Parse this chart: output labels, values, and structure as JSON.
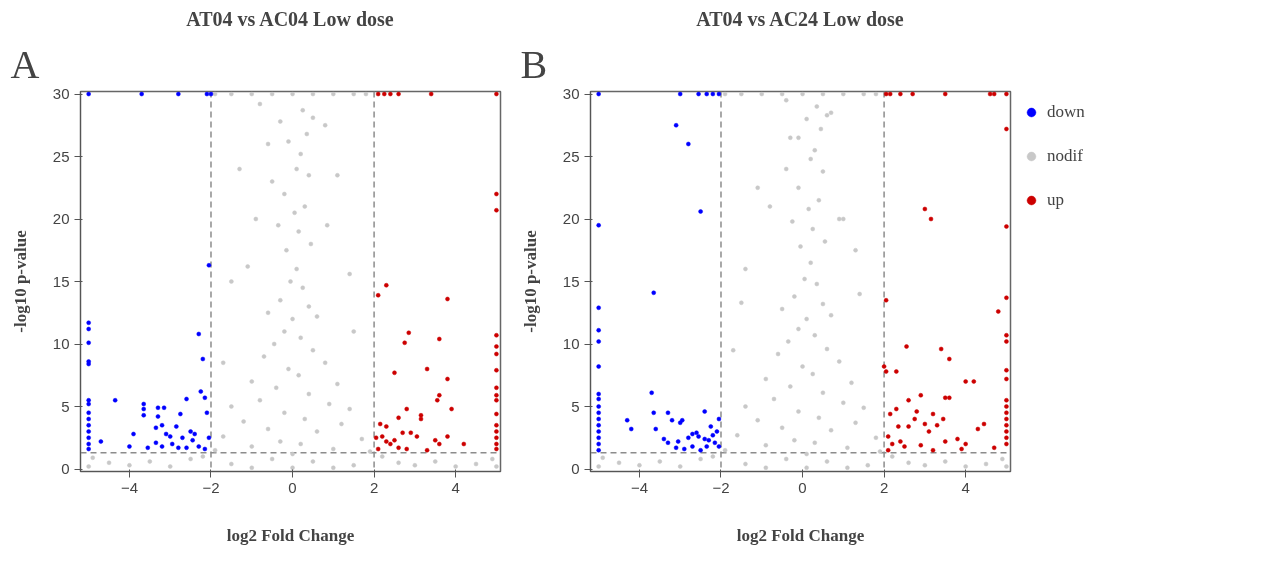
{
  "chart_data": [
    {
      "type": "scatter",
      "title": "AT04 vs AC04 Low dose",
      "xlabel": "log2 Fold Change",
      "ylabel": "-log10 p-value",
      "annotations": [
        "A"
      ],
      "xlim": [
        -5.2,
        5.1
      ],
      "ylim": [
        -0.2,
        30.2
      ],
      "xticks": [
        -4,
        -2,
        0,
        2,
        4
      ],
      "yticks": [
        0,
        5,
        10,
        15,
        20,
        25,
        30
      ],
      "grid": false,
      "legend": false,
      "marker": "circle",
      "ref_lines": [
        {
          "axis": "x",
          "value": -2,
          "color": "#8c8c8c",
          "line_style": "dashed"
        },
        {
          "axis": "x",
          "value": 2,
          "color": "#8c8c8c",
          "line_style": "dashed"
        },
        {
          "axis": "y",
          "value": 1.3,
          "color": "#8c8c8c",
          "line_style": "dashed"
        }
      ],
      "series": [
        {
          "color": "#c8c8c8",
          "x": [
            -1.9,
            -1.5,
            -1.0,
            -0.5,
            0,
            0.5,
            1.0,
            1.5,
            1.8,
            -0.8,
            0.25,
            -0.3,
            0.5,
            0.35,
            -0.1,
            0.2,
            -0.5,
            0.1,
            0.4,
            -0.2,
            0.3,
            0.05,
            -0.35,
            0.15,
            0.45,
            -0.15,
            -1.3,
            1.1,
            -1.1,
            1.4,
            0.1,
            -0.05,
            0.25,
            -0.3,
            0.4,
            -0.6,
            0.6,
            0,
            -0.2,
            0.2,
            -0.45,
            0.5,
            -0.7,
            0.8,
            -0.1,
            0.15,
            -1.0,
            1.1,
            -0.4,
            0.4,
            -0.8,
            0.9,
            -1.5,
            1.4,
            -0.2,
            0.3,
            -1.2,
            1.2,
            -0.6,
            0.6,
            -1.7,
            1.7,
            -0.3,
            0.2,
            -1.0,
            1.0,
            -1.9,
            1.9,
            0,
            -0.5,
            0.5,
            -1.5,
            1.5,
            0,
            -1.0,
            1.0,
            -1.7,
            -1.5,
            1.5,
            -0.9,
            0.85,
            -0.6,
            0.8,
            -4.9,
            -4.5,
            -4.0,
            -3.5,
            -3.0,
            -2.5,
            -2.2,
            2.2,
            2.6,
            3.0,
            3.5,
            4.0,
            4.5,
            4.9,
            -5,
            5
          ],
          "values": [
            30,
            30,
            30,
            30,
            30,
            30,
            30,
            30,
            30,
            29.2,
            28.7,
            27.8,
            28.1,
            26.8,
            26.2,
            25.2,
            23.0,
            24.0,
            23.5,
            22.0,
            21.0,
            20.5,
            19.5,
            19.0,
            18.0,
            17.5,
            24.0,
            23.5,
            16.2,
            15.6,
            16.0,
            15.0,
            14.5,
            13.5,
            13.0,
            12.5,
            12.2,
            12.0,
            11.0,
            10.5,
            10.0,
            9.5,
            9.0,
            8.5,
            8.0,
            7.5,
            7.0,
            6.8,
            6.5,
            6.0,
            5.5,
            5.2,
            5.0,
            4.8,
            4.5,
            4.0,
            3.8,
            3.6,
            3.2,
            3.0,
            2.6,
            2.4,
            2.2,
            2.0,
            1.8,
            1.6,
            1.5,
            1.4,
            1.2,
            0.8,
            0.6,
            0.4,
            0.3,
            0.1,
            0.1,
            0.1,
            8.5,
            15.0,
            11.0,
            20.0,
            19.5,
            26.0,
            27.5,
            0.9,
            0.5,
            0.3,
            0.6,
            0.2,
            0.8,
            1.0,
            1.0,
            0.5,
            0.3,
            0.6,
            0.2,
            0.4,
            0.8,
            0.2,
            0.2
          ]
        },
        {
          "color": "#0000ff",
          "x": [
            -5,
            -3.7,
            -2.8,
            -2.1,
            -2.0,
            -2.05,
            -5,
            -5,
            -5,
            -5,
            -5,
            -5,
            -5,
            -5,
            -5,
            -5,
            -5,
            -5,
            -5,
            -5,
            -4.35,
            -4.7,
            -3.9,
            -3.65,
            -3.65,
            -3.65,
            -3.3,
            -3.15,
            -3.3,
            -3.35,
            -3.2,
            -3.1,
            -3.0,
            -2.95,
            -2.85,
            -2.75,
            -2.6,
            -2.5,
            -2.4,
            -2.3,
            -2.2,
            -2.25,
            -2.15,
            -2.1,
            -2.05,
            -3.55,
            -3.2,
            -2.8,
            -2.6,
            -2.3,
            -2.15,
            -4.0,
            -3.35,
            -2.7,
            -2.45
          ],
          "values": [
            30,
            30,
            30,
            30,
            30,
            16.3,
            11.7,
            11.2,
            10.1,
            8.6,
            8.4,
            5.5,
            5.2,
            4.5,
            4.0,
            3.5,
            3.0,
            2.5,
            2.0,
            1.6,
            5.5,
            2.2,
            2.8,
            5.2,
            4.8,
            4.3,
            4.9,
            4.9,
            4.2,
            3.3,
            3.5,
            2.8,
            2.6,
            2.0,
            3.4,
            4.4,
            5.6,
            3.0,
            2.8,
            10.8,
            8.8,
            6.2,
            5.7,
            4.5,
            2.5,
            1.7,
            1.8,
            1.7,
            1.7,
            1.8,
            1.6,
            1.8,
            2.1,
            2.5,
            2.3
          ]
        },
        {
          "color": "#cc0000",
          "x": [
            2.1,
            2.25,
            2.4,
            2.6,
            3.4,
            5,
            5,
            5,
            2.1,
            2.3,
            3.8,
            2.85,
            2.75,
            3.6,
            5,
            5,
            5,
            5,
            5,
            5,
            5,
            5,
            5,
            5,
            5,
            5,
            5,
            2.5,
            3.3,
            3.8,
            3.55,
            3.6,
            3.9,
            2.8,
            2.6,
            3.15,
            3.15,
            2.15,
            2.3,
            2.2,
            2.05,
            2.3,
            2.5,
            2.7,
            2.9,
            3.05,
            3.5,
            3.8,
            4.2,
            2.1,
            2.6,
            2.8,
            3.3,
            3.6,
            2.4
          ],
          "values": [
            30,
            30,
            30,
            30,
            30,
            30,
            22,
            20.7,
            13.9,
            14.7,
            13.6,
            10.9,
            10.1,
            10.4,
            10.7,
            9.8,
            9.2,
            7.9,
            6.5,
            5.9,
            5.5,
            4.4,
            3.5,
            3.0,
            2.5,
            2.0,
            1.6,
            7.7,
            8.0,
            7.2,
            5.5,
            5.9,
            4.8,
            4.8,
            4.1,
            4.0,
            4.3,
            3.6,
            3.4,
            2.6,
            2.5,
            2.2,
            2.3,
            2.9,
            2.9,
            2.6,
            2.3,
            2.6,
            2.0,
            1.6,
            1.7,
            1.6,
            1.5,
            2.0,
            2.0
          ]
        }
      ]
    },
    {
      "type": "scatter",
      "title": "AT04 vs AC24 Low dose",
      "xlabel": "log2 Fold Change",
      "ylabel": "-log10 p-value",
      "annotations": [
        "B"
      ],
      "xlim": [
        -5.2,
        5.1
      ],
      "ylim": [
        -0.2,
        30.2
      ],
      "xticks": [
        -4,
        -2,
        0,
        2,
        4
      ],
      "yticks": [
        0,
        5,
        10,
        15,
        20,
        25,
        30
      ],
      "grid": false,
      "legend": "right",
      "marker": "circle",
      "ref_lines": [
        {
          "axis": "x",
          "value": -2,
          "color": "#8c8c8c",
          "line_style": "dashed"
        },
        {
          "axis": "x",
          "value": 2,
          "color": "#8c8c8c",
          "line_style": "dashed"
        },
        {
          "axis": "y",
          "value": 1.3,
          "color": "#8c8c8c",
          "line_style": "dashed"
        }
      ],
      "series": [
        {
          "name": "down",
          "color": "#0000ff",
          "x": [
            -5,
            -3.0,
            -2.55,
            -2.35,
            -2.2,
            -2.05,
            -3.1,
            -2.8,
            -2.5,
            -5,
            -3.65,
            -5,
            -5,
            -5,
            -5,
            -5,
            -5,
            -5,
            -5,
            -5,
            -5,
            -5,
            -5,
            -5,
            -5,
            -3.7,
            -3.65,
            -4.3,
            -4.2,
            -3.6,
            -3.3,
            -3.2,
            -3.0,
            -2.95,
            -2.4,
            -2.25,
            -3.4,
            -3.3,
            -3.05,
            -2.9,
            -2.8,
            -2.7,
            -2.6,
            -2.55,
            -2.4,
            -2.3,
            -2.2,
            -2.15,
            -2.1,
            -2.05,
            -2.05,
            -2.5,
            -3.1,
            -2.35,
            -2.7
          ],
          "values": [
            30,
            30,
            30,
            30,
            30,
            30,
            27.5,
            26,
            20.6,
            19.5,
            14.1,
            12.9,
            11.1,
            10.2,
            8.2,
            6.0,
            5.6,
            5.0,
            4.5,
            4.0,
            3.5,
            3.0,
            2.5,
            2.0,
            1.5,
            6.1,
            4.5,
            3.9,
            3.2,
            3.2,
            4.5,
            3.9,
            3.7,
            3.9,
            4.6,
            3.4,
            2.4,
            2.1,
            2.2,
            1.6,
            2.5,
            2.8,
            2.9,
            2.6,
            2.4,
            2.3,
            2.7,
            2.1,
            3.0,
            1.8,
            4.0,
            1.5,
            1.7,
            1.8,
            1.8
          ]
        },
        {
          "name": "nodif",
          "color": "#c8c8c8",
          "x": [
            -1.9,
            -1.5,
            -1.0,
            -0.5,
            0,
            0.5,
            1.0,
            1.5,
            1.8,
            -0.4,
            0.35,
            0.1,
            0.6,
            0.45,
            -0.1,
            0.3,
            -0.4,
            0.2,
            0.5,
            -0.1,
            0.4,
            0.15,
            -0.25,
            0.25,
            0.55,
            -0.05,
            -1.1,
            1.0,
            -1.4,
            1.3,
            0.2,
            0.05,
            0.35,
            -0.2,
            0.5,
            -0.5,
            0.7,
            0.1,
            -0.1,
            0.3,
            -0.35,
            0.6,
            -0.6,
            0.9,
            0,
            0.25,
            -0.9,
            1.2,
            -0.3,
            0.5,
            -0.7,
            1.0,
            -1.4,
            1.5,
            -0.1,
            0.4,
            -1.1,
            1.3,
            -0.5,
            0.7,
            -1.6,
            1.8,
            -0.2,
            0.3,
            -0.9,
            1.1,
            -1.9,
            1.9,
            0.1,
            -0.4,
            0.6,
            -1.4,
            1.6,
            0.1,
            -0.9,
            1.1,
            -1.7,
            -1.5,
            1.4,
            -0.8,
            0.9,
            -0.3,
            0.7,
            -4.9,
            -4.5,
            -4.0,
            -3.5,
            -3.0,
            -2.5,
            -2.2,
            2.2,
            2.6,
            3.0,
            3.5,
            4.0,
            4.5,
            4.9,
            -5,
            5
          ],
          "values": [
            30,
            30,
            30,
            30,
            30,
            30,
            30,
            30,
            30,
            29.5,
            29.0,
            28.0,
            28.3,
            27.2,
            26.5,
            25.5,
            24.0,
            24.8,
            23.8,
            22.5,
            21.5,
            20.8,
            19.8,
            19.2,
            18.2,
            17.8,
            22.5,
            20.0,
            16.0,
            17.5,
            16.5,
            15.2,
            14.8,
            13.8,
            13.2,
            12.8,
            12.3,
            12.0,
            11.2,
            10.7,
            10.2,
            9.6,
            9.2,
            8.6,
            8.2,
            7.6,
            7.2,
            6.9,
            6.6,
            6.1,
            5.6,
            5.3,
            5.0,
            4.9,
            4.6,
            4.1,
            3.9,
            3.7,
            3.3,
            3.1,
            2.7,
            2.5,
            2.3,
            2.1,
            1.9,
            1.7,
            1.5,
            1.4,
            1.2,
            0.8,
            0.6,
            0.4,
            0.3,
            0.1,
            0.1,
            0.1,
            9.5,
            13.3,
            14.0,
            21.0,
            20.0,
            26.5,
            28.5,
            0.9,
            0.5,
            0.3,
            0.6,
            0.2,
            0.8,
            1.0,
            1.0,
            0.5,
            0.3,
            0.6,
            0.2,
            0.4,
            0.8,
            0.2,
            0.2
          ]
        },
        {
          "name": "up",
          "color": "#cc0000",
          "x": [
            2.05,
            2.15,
            2.4,
            2.7,
            3.5,
            4.6,
            4.7,
            5,
            5,
            3.0,
            3.15,
            5,
            2.05,
            5,
            4.8,
            5,
            5,
            2.55,
            3.4,
            3.6,
            2.0,
            2.05,
            2.3,
            5,
            5,
            4.0,
            4.2,
            3.5,
            3.6,
            2.9,
            2.6,
            5,
            5,
            5,
            5,
            5,
            5,
            5,
            5,
            2.3,
            2.8,
            3.2,
            3.45,
            2.15,
            2.75,
            2.6,
            2.35,
            3.0,
            3.3,
            3.1,
            4.3,
            4.45,
            4.0,
            2.1,
            2.2,
            2.5,
            2.4,
            2.9,
            3.5,
            3.8,
            3.9,
            4.7,
            2.1,
            3.2
          ],
          "values": [
            30,
            30,
            30,
            30,
            30,
            30,
            30,
            30,
            27.2,
            20.8,
            20.0,
            19.4,
            13.5,
            13.7,
            12.6,
            10.7,
            10.2,
            9.8,
            9.6,
            8.8,
            8.2,
            7.8,
            7.8,
            7.9,
            7.2,
            7.0,
            7.0,
            5.7,
            5.7,
            5.9,
            5.5,
            5.5,
            5.0,
            4.5,
            4.0,
            3.5,
            3.0,
            2.5,
            2.0,
            4.8,
            4.6,
            4.4,
            4.0,
            4.4,
            4.0,
            3.4,
            3.4,
            3.6,
            3.5,
            3.0,
            3.2,
            3.6,
            2.0,
            2.6,
            2.0,
            1.8,
            2.2,
            1.9,
            2.2,
            2.4,
            1.6,
            1.7,
            1.5,
            1.5
          ]
        }
      ]
    }
  ]
}
